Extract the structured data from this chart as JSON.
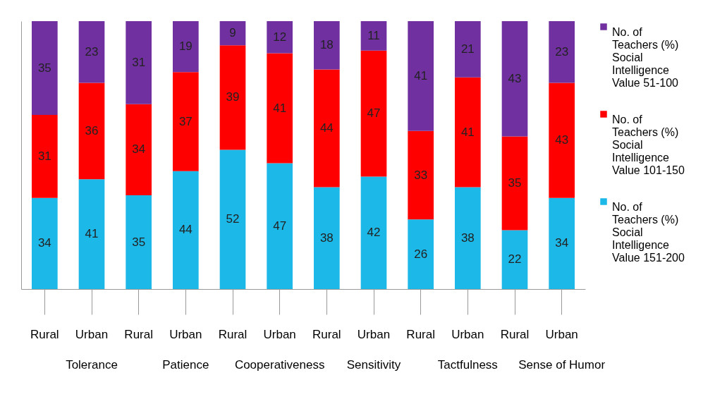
{
  "chart_data": {
    "type": "bar",
    "stacked": true,
    "data_labels": true,
    "legend": "right",
    "categories": [
      "Rural",
      "Urban",
      "Rural",
      "Urban",
      "Rural",
      "Urban",
      "Rural",
      "Urban",
      "Rural",
      "Urban",
      "Rural",
      "Urban"
    ],
    "annotations": [
      "Tolerance",
      "Patience",
      "Cooperativeness",
      "Sensitivity",
      "Tactfulness",
      "Sense of Humor"
    ],
    "ylim": [
      0,
      100
    ],
    "series": [
      {
        "name": "No. of Teachers (%) Social Intelligence Value 151-200",
        "color": "#1cb8e8",
        "values": [
          34,
          41,
          35,
          44,
          52,
          47,
          38,
          42,
          26,
          38,
          22,
          34
        ]
      },
      {
        "name": "No. of Teachers (%) Social Intelligence Value 101-150",
        "color": "#ff0000",
        "values": [
          31,
          36,
          34,
          37,
          39,
          41,
          44,
          47,
          33,
          41,
          35,
          43
        ]
      },
      {
        "name": "No. of Teachers (%) Social Intelligence Value 51-100",
        "color": "#7030a0",
        "values": [
          35,
          23,
          31,
          19,
          9,
          12,
          18,
          11,
          41,
          21,
          43,
          23
        ]
      }
    ]
  }
}
